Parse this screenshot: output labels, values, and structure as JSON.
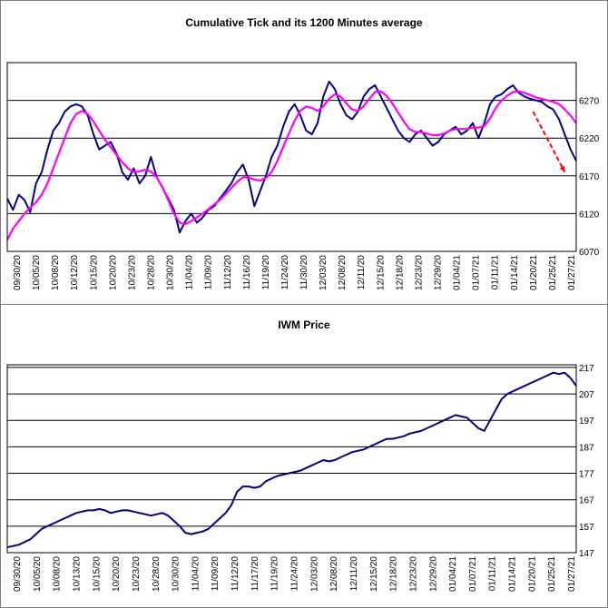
{
  "chart_data": [
    {
      "type": "line",
      "title": "Cumulative Tick and its 1200 Minutes average",
      "ylim": [
        6070,
        6320
      ],
      "yticks": [
        6070,
        6120,
        6170,
        6220,
        6270
      ],
      "x_labels": [
        "09/30/20",
        "10/05/20",
        "10/08/20",
        "10/12/20",
        "10/15/20",
        "10/20/20",
        "10/23/20",
        "10/28/20",
        "10/30/20",
        "11/04/20",
        "11/09/20",
        "11/12/20",
        "11/16/20",
        "11/19/20",
        "11/24/20",
        "11/30/20",
        "12/03/20",
        "12/08/20",
        "12/11/20",
        "12/15/20",
        "12/18/20",
        "12/23/20",
        "12/29/20",
        "01/04/21",
        "01/07/21",
        "01/11/21",
        "01/14/21",
        "01/20/21",
        "01/25/21",
        "01/27/21"
      ],
      "colors": {
        "series_1": "#000080",
        "series_2": "#ff00ff",
        "annotation": "#ff0000"
      },
      "series": [
        {
          "values": [
            6140,
            6125,
            6145,
            6138,
            6122,
            6160,
            6175,
            6205,
            6230,
            6240,
            6255,
            6262,
            6265,
            6262,
            6250,
            6225,
            6205,
            6210,
            6215,
            6200,
            6175,
            6165,
            6180,
            6160,
            6170,
            6195,
            6168,
            6155,
            6140,
            6125,
            6095,
            6110,
            6120,
            6108,
            6115,
            6125,
            6130,
            6140,
            6150,
            6160,
            6175,
            6185,
            6165,
            6130,
            6150,
            6170,
            6195,
            6210,
            6235,
            6255,
            6265,
            6250,
            6230,
            6225,
            6240,
            6275,
            6295,
            6285,
            6265,
            6250,
            6245,
            6255,
            6275,
            6285,
            6290,
            6275,
            6260,
            6245,
            6230,
            6220,
            6215,
            6225,
            6230,
            6220,
            6210,
            6215,
            6225,
            6230,
            6235,
            6225,
            6230,
            6240,
            6220,
            6240,
            6265,
            6275,
            6278,
            6285,
            6290,
            6280,
            6275,
            6272,
            6270,
            6268,
            6262,
            6258,
            6245,
            6225,
            6205,
            6190
          ]
        },
        {
          "values": [
            6085,
            6100,
            6110,
            6120,
            6128,
            6135,
            6145,
            6160,
            6180,
            6200,
            6220,
            6240,
            6252,
            6256,
            6252,
            6242,
            6230,
            6218,
            6208,
            6198,
            6188,
            6180,
            6175,
            6176,
            6178,
            6176,
            6168,
            6155,
            6138,
            6120,
            6108,
            6106,
            6110,
            6115,
            6120,
            6126,
            6132,
            6138,
            6146,
            6154,
            6162,
            6168,
            6168,
            6165,
            6164,
            6167,
            6175,
            6190,
            6208,
            6226,
            6243,
            6256,
            6262,
            6260,
            6256,
            6262,
            6272,
            6278,
            6275,
            6266,
            6258,
            6256,
            6262,
            6272,
            6281,
            6282,
            6276,
            6266,
            6254,
            6242,
            6232,
            6228,
            6228,
            6226,
            6224,
            6224,
            6226,
            6230,
            6232,
            6232,
            6232,
            6234,
            6234,
            6236,
            6246,
            6260,
            6270,
            6276,
            6281,
            6282,
            6280,
            6277,
            6274,
            6272,
            6270,
            6268,
            6265,
            6258,
            6250,
            6240
          ]
        }
      ],
      "annotation": {
        "type": "dashed-arrow",
        "from": [
          91.5,
          6255
        ],
        "to": [
          97,
          6175
        ]
      }
    },
    {
      "type": "line",
      "title": "IWM Price",
      "ylim": [
        147,
        218
      ],
      "yticks": [
        147,
        157,
        167,
        177,
        187,
        197,
        207,
        217
      ],
      "x_labels": [
        "09/30/20",
        "10/05/20",
        "10/08/20",
        "10/13/20",
        "10/15/20",
        "10/20/20",
        "10/23/20",
        "10/28/20",
        "10/30/20",
        "11/04/20",
        "11/09/20",
        "11/12/20",
        "11/17/20",
        "11/19/20",
        "11/24/20",
        "12/03/20",
        "12/08/20",
        "12/11/20",
        "12/15/20",
        "12/18/20",
        "12/23/20",
        "12/29/20",
        "01/04/21",
        "01/07/21",
        "01/11/21",
        "01/14/21",
        "01/20/21",
        "01/25/21",
        "01/27/21"
      ],
      "colors": {
        "series_1": "#000080"
      },
      "series": [
        {
          "values": [
            149,
            149.5,
            150,
            151,
            152,
            154,
            156,
            157,
            158,
            159,
            160,
            161,
            162,
            162.5,
            163,
            163,
            163.5,
            163,
            162,
            162.5,
            163,
            163,
            162.5,
            162,
            161.5,
            161,
            161.5,
            162,
            161,
            159,
            157,
            154.5,
            154,
            154.5,
            155,
            156,
            158,
            160,
            162,
            165,
            170,
            172,
            172,
            171.5,
            172,
            174,
            175,
            176,
            176.5,
            177,
            177.5,
            178,
            179,
            180,
            181,
            182,
            181.5,
            182,
            183,
            184,
            185,
            185.5,
            186,
            187,
            188,
            189,
            190,
            190,
            190.5,
            191,
            192,
            192.5,
            193,
            194,
            195,
            196,
            197,
            198,
            199,
            198.5,
            198,
            196,
            194,
            193,
            197,
            201,
            205,
            207,
            208,
            209,
            210,
            211,
            212,
            213,
            214,
            215,
            214.5,
            215,
            213,
            210
          ]
        }
      ]
    }
  ]
}
